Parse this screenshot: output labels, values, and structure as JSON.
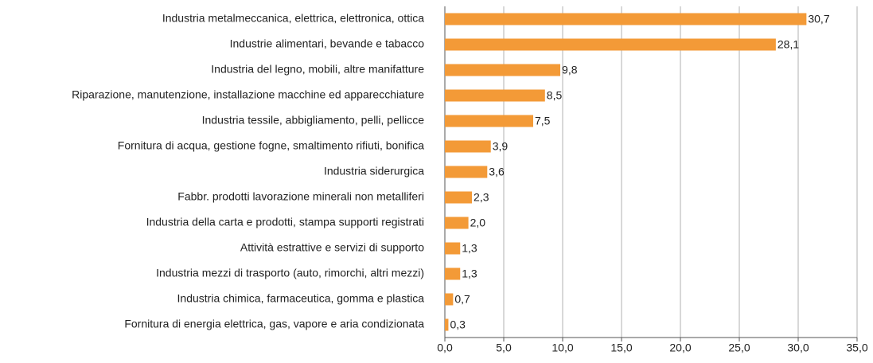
{
  "chart_data": {
    "type": "hbar",
    "categories": [
      "Industria metalmeccanica, elettrica, elettronica, ottica",
      "Industrie alimentari, bevande e tabacco",
      "Industria del legno, mobili, altre manifatture",
      "Riparazione, manutenzione, installazione macchine ed apparecchiature",
      "Industria tessile, abbigliamento, pelli, pellicce",
      "Fornitura di acqua, gestione fogne, smaltimento rifiuti, bonifica",
      "Industria siderurgica",
      "Fabbr. prodotti lavorazione minerali non metalliferi",
      "Industria della carta e prodotti, stampa supporti registrati",
      "Attività estrattive e servizi di supporto",
      "Industria mezzi di trasporto (auto, rimorchi, altri mezzi)",
      "Industria chimica, farmaceutica, gomma e plastica",
      "Fornitura di energia elettrica, gas, vapore e aria condizionata"
    ],
    "values": [
      30.7,
      28.1,
      9.8,
      8.5,
      7.5,
      3.9,
      3.6,
      2.3,
      2.0,
      1.3,
      1.3,
      0.7,
      0.3
    ],
    "value_labels": [
      "30,7",
      "28,1",
      "9,8",
      "8,5",
      "7,5",
      "3,9",
      "3,6",
      "2,3",
      "2,0",
      "1,3",
      "1,3",
      "0,7",
      "0,3"
    ],
    "color": "#f39a37",
    "xlim": [
      0,
      35
    ],
    "xticks": [
      {
        "value": 0,
        "label": "0,0"
      },
      {
        "value": 5,
        "label": "5,0"
      },
      {
        "value": 10,
        "label": "10,0"
      },
      {
        "value": 15,
        "label": "15,0"
      },
      {
        "value": 20,
        "label": "20,0"
      },
      {
        "value": 25,
        "label": "25,0"
      },
      {
        "value": 30,
        "label": "30,0"
      },
      {
        "value": 35,
        "label": "35,0"
      }
    ],
    "grid": true
  }
}
